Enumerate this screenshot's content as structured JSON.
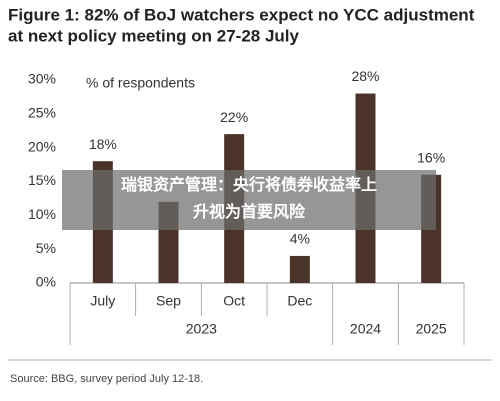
{
  "chart_data": {
    "type": "bar",
    "title_lines": [
      "Figure 1: 82% of BoJ watchers expect no YCC adjustment",
      "at next policy meeting on 27-28 July"
    ],
    "annotation": "% of respondents",
    "categories": [
      "July",
      "Sep",
      "Oct",
      "Dec",
      null,
      null
    ],
    "x_groups": [
      "2023",
      "2023",
      "2023",
      "2023",
      "2024",
      "2025"
    ],
    "values": [
      18,
      12,
      22,
      4,
      28,
      16
    ],
    "value_labels": [
      "18%",
      null,
      "22%",
      "4%",
      "28%",
      "16%"
    ],
    "color": "#4a3328",
    "ylim": [
      0,
      30
    ],
    "yticks": [
      {
        "value": 0,
        "label": "0%"
      },
      {
        "value": 5,
        "label": "5%"
      },
      {
        "value": 10,
        "label": "10%"
      },
      {
        "value": 15,
        "label": "15%"
      },
      {
        "value": 20,
        "label": "20%"
      },
      {
        "value": 25,
        "label": "25%"
      },
      {
        "value": 30,
        "label": "30%"
      }
    ],
    "source": "Source: BBG, survey period July 12-18."
  },
  "overlay": {
    "lines": [
      "瑞银资产管理：央行将债券收益率上",
      "升视为首要风险"
    ]
  }
}
